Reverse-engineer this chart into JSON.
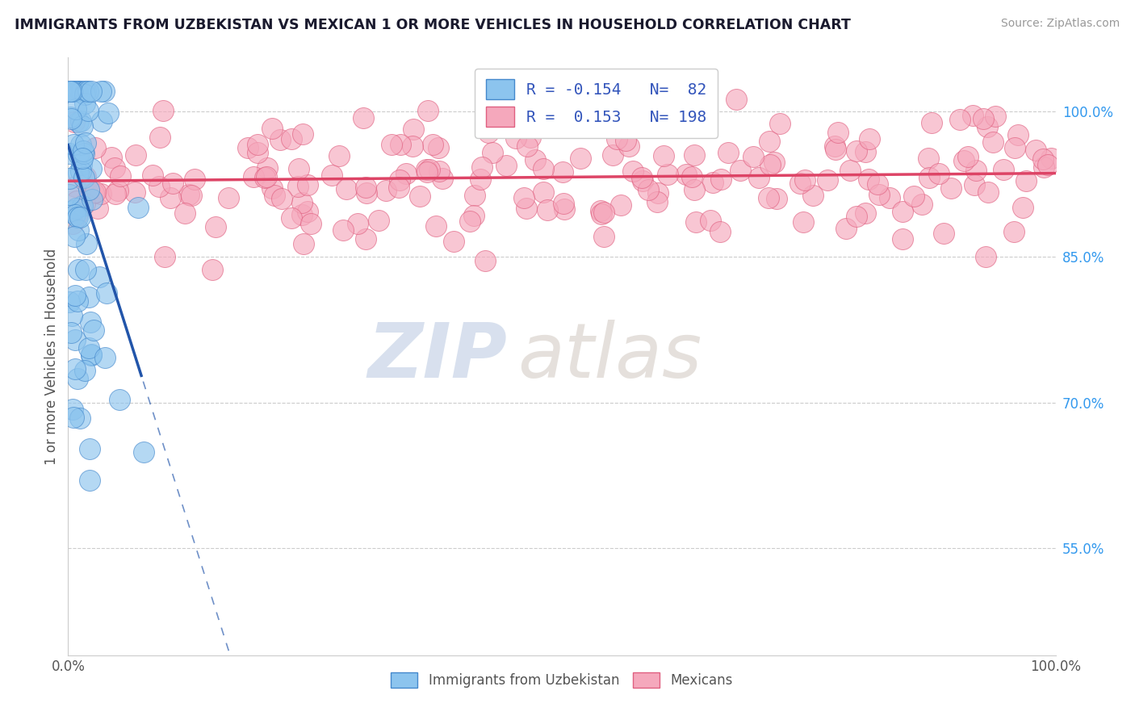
{
  "title": "IMMIGRANTS FROM UZBEKISTAN VS MEXICAN 1 OR MORE VEHICLES IN HOUSEHOLD CORRELATION CHART",
  "source": "Source: ZipAtlas.com",
  "ylabel": "1 or more Vehicles in Household",
  "xmin": 0.0,
  "xmax": 1.0,
  "ymin": 0.44,
  "ymax": 1.055,
  "yticks_shown": [
    0.55,
    0.7,
    0.85,
    1.0
  ],
  "ytick_labels_shown": [
    "55.0%",
    "70.0%",
    "85.0%",
    "100.0%"
  ],
  "blue_R": -0.154,
  "blue_N": 82,
  "pink_R": 0.153,
  "pink_N": 198,
  "blue_color": "#8CC4EE",
  "pink_color": "#F5A8BC",
  "blue_edge_color": "#4488CC",
  "pink_edge_color": "#E06080",
  "blue_line_color": "#2255AA",
  "pink_line_color": "#DD4466",
  "watermark_zip": "ZIP",
  "watermark_atlas": "atlas",
  "legend_label_blue": "R = -0.154   N=  82",
  "legend_label_pink": "R =  0.153   N= 198",
  "bottom_label_blue": "Immigrants from Uzbekistan",
  "bottom_label_pink": "Mexicans",
  "blue_trend_x0": 0.0,
  "blue_trend_y0": 0.965,
  "blue_trend_slope": -3.2,
  "pink_trend_x0": 0.0,
  "pink_trend_y0": 0.928,
  "pink_trend_slope": 0.008
}
